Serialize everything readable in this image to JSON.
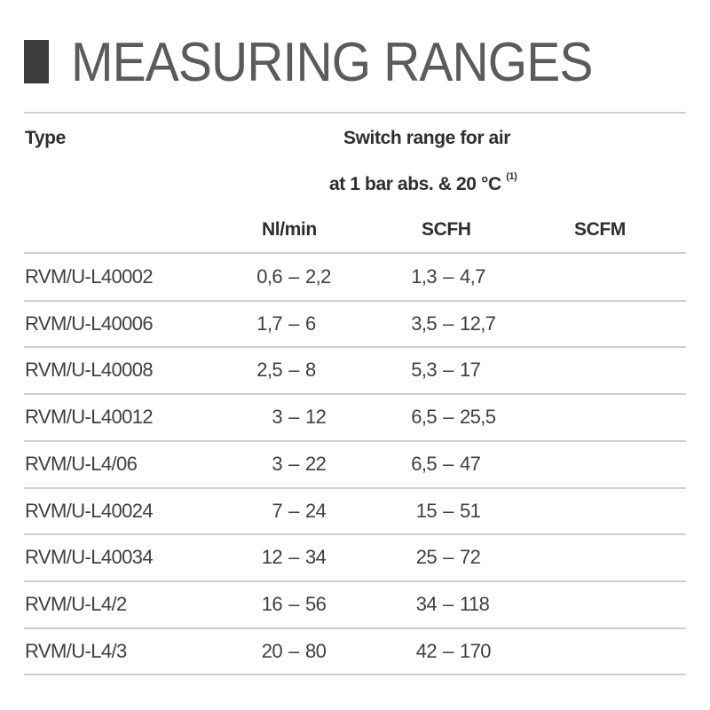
{
  "title": "MEASURING RANGES",
  "header": {
    "type": "Type",
    "group_line1": "Switch range for air",
    "group_line2": "at 1 bar abs. & 20 °C",
    "group_footnote": "(1)",
    "columns": [
      "Nl/min",
      "SCFH",
      "SCFM"
    ]
  },
  "rows": [
    {
      "type": "RVM/U-L40002",
      "nlmin": [
        "0,6",
        "2,2"
      ],
      "scfh": [
        "1,3",
        "4,7"
      ]
    },
    {
      "type": "RVM/U-L40006",
      "nlmin": [
        "1,7",
        "6"
      ],
      "scfh": [
        "3,5",
        "12,7"
      ]
    },
    {
      "type": "RVM/U-L40008",
      "nlmin": [
        "2,5",
        "8"
      ],
      "scfh": [
        "5,3",
        "17"
      ]
    },
    {
      "type": "RVM/U-L40012",
      "nlmin": [
        "3",
        "12"
      ],
      "scfh": [
        "6,5",
        "25,5"
      ]
    },
    {
      "type": "RVM/U-L4/06",
      "nlmin": [
        "3",
        "22"
      ],
      "scfh": [
        "6,5",
        "47"
      ]
    },
    {
      "type": "RVM/U-L40024",
      "nlmin": [
        "7",
        "24"
      ],
      "scfh": [
        "15",
        "51"
      ]
    },
    {
      "type": "RVM/U-L40034",
      "nlmin": [
        "12",
        "34"
      ],
      "scfh": [
        "25",
        "72"
      ]
    },
    {
      "type": "RVM/U-L4/2",
      "nlmin": [
        "16",
        "56"
      ],
      "scfh": [
        "34",
        "118"
      ]
    },
    {
      "type": "RVM/U-L4/3",
      "nlmin": [
        "20",
        "80"
      ],
      "scfh": [
        "42",
        "170"
      ]
    }
  ],
  "dash": "–"
}
